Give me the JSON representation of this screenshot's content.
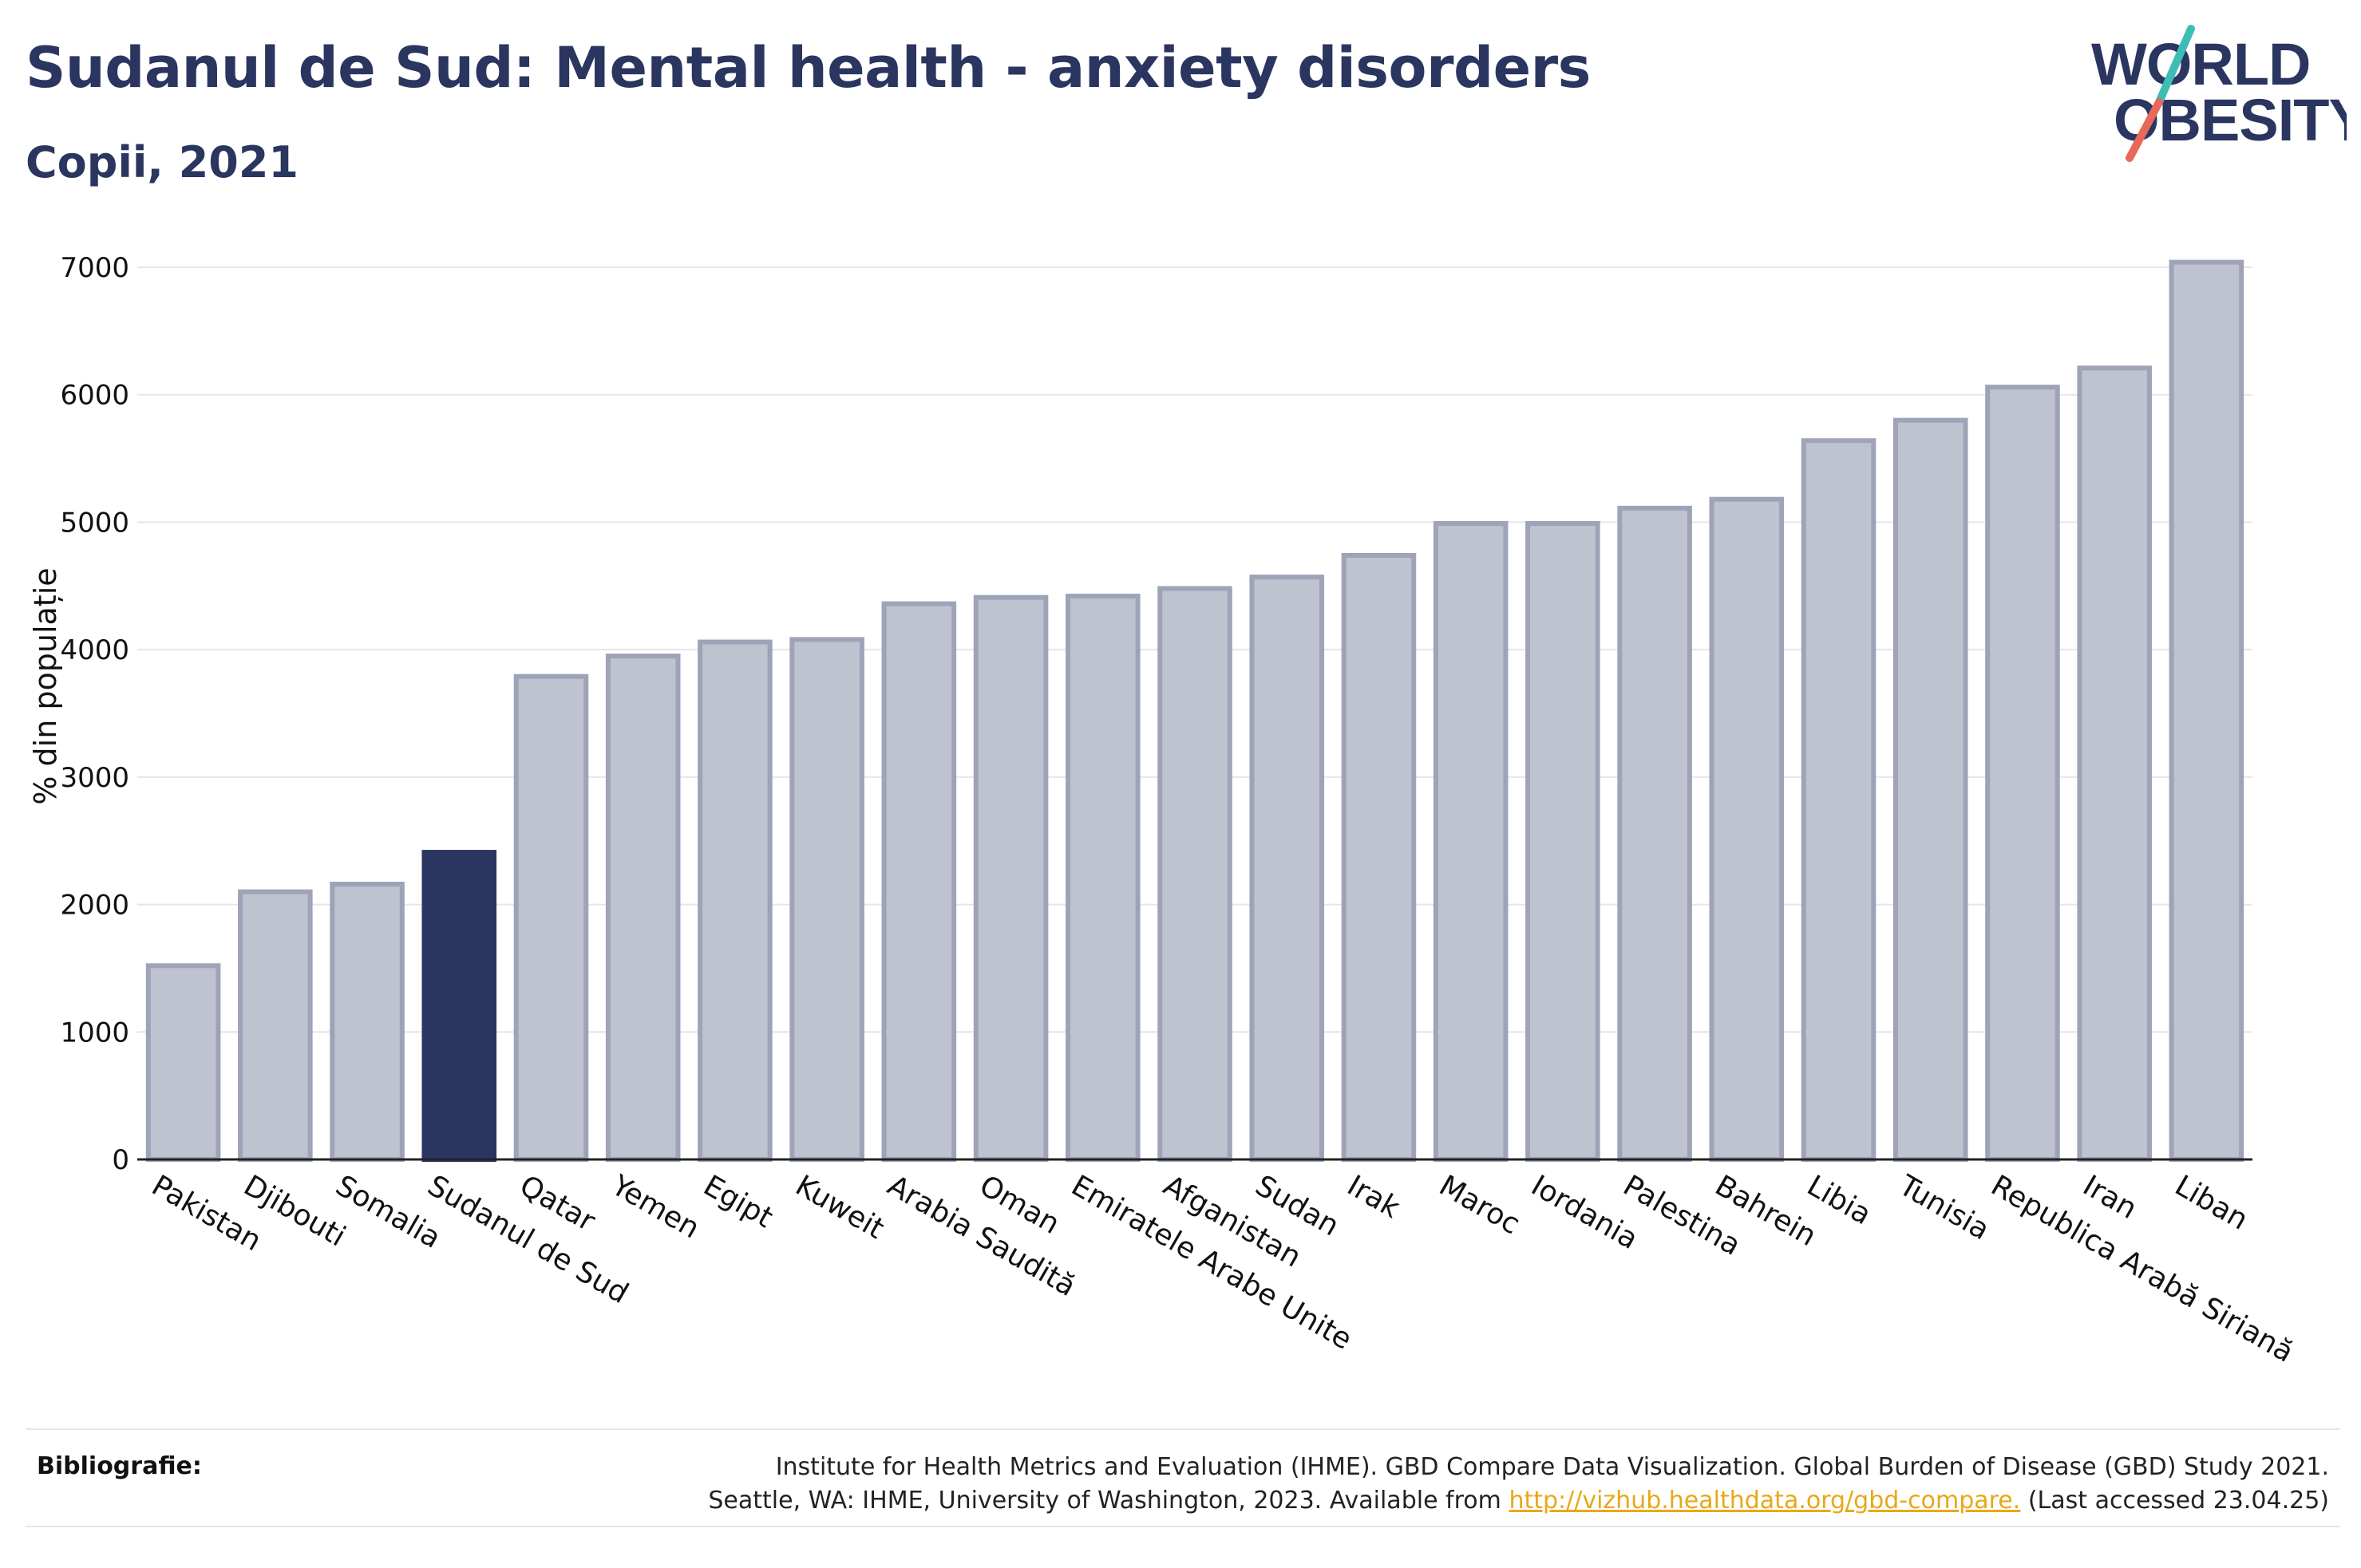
{
  "header": {
    "title": "Sudanul de Sud: Mental health - anxiety disorders",
    "subtitle": "Copii, 2021"
  },
  "logo": {
    "line1": "WORLD",
    "line2": "OBESITY",
    "stroke_colors": [
      "#3dbdb5",
      "#e8685a"
    ]
  },
  "colors": {
    "highlight": "#2a3560",
    "bar_fill": "#bfc2cf",
    "bar_stroke": "#9ea3b8",
    "grid": "#e6e6ea",
    "text": "#2a3560",
    "link": "#e8a817"
  },
  "chart_data": {
    "type": "bar",
    "title": "Sudanul de Sud: Mental health - anxiety disorders",
    "subtitle": "Copii, 2021",
    "ylabel": "% din populație",
    "ylim": [
      0,
      7000
    ],
    "yticks": [
      0,
      1000,
      2000,
      3000,
      4000,
      5000,
      6000,
      7000
    ],
    "grid": true,
    "highlight_category": "Sudanul de Sud",
    "categories": [
      "Pakistan",
      "Djibouti",
      "Somalia",
      "Sudanul de Sud",
      "Qatar",
      "Yemen",
      "Egipt",
      "Kuweit",
      "Arabia Saudită",
      "Oman",
      "Emiratele Arabe Unite",
      "Afganistan",
      "Sudan",
      "Irak",
      "Maroc",
      "Iordania",
      "Palestina",
      "Bahrein",
      "Libia",
      "Tunisia",
      "Republica Arabă Siriană",
      "Iran",
      "Liban"
    ],
    "values": [
      1520,
      2100,
      2160,
      2410,
      3790,
      3950,
      4060,
      4080,
      4360,
      4410,
      4420,
      4480,
      4570,
      4740,
      4990,
      4990,
      5110,
      5180,
      5640,
      5800,
      6060,
      6210,
      7040
    ]
  },
  "footer": {
    "label": "Bibliografie:",
    "line1": "Institute for Health Metrics and Evaluation (IHME). GBD Compare Data Visualization. Global Burden of Disease (GBD) Study 2021.",
    "line2_prefix": "Seattle, WA: IHME, University of Washington, 2023. Available from",
    "link": "http://vizhub.healthdata.org/gbd-compare.",
    "line2_suffix": "(Last accessed 23.04.25)"
  }
}
